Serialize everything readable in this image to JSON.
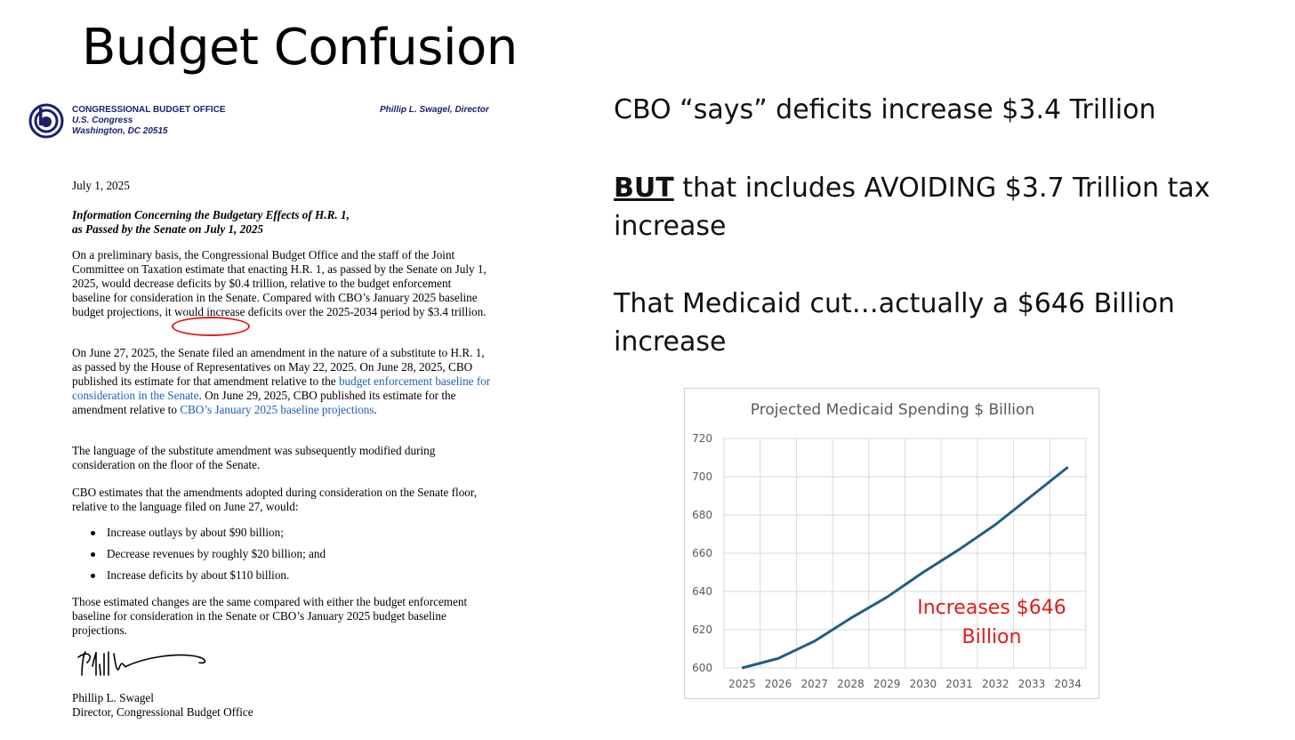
{
  "slide": {
    "title": "Budget Confusion"
  },
  "letter": {
    "org_name": "CONGRESSIONAL BUDGET OFFICE",
    "org_sub1": "U.S. Congress",
    "org_sub2": "Washington, DC 20515",
    "director_header": "Phillip L. Swagel, Director",
    "date": "July 1, 2025",
    "subject_line1": "Information Concerning the Budgetary Effects of H.R. 1,",
    "subject_line2": "as Passed by the Senate on July 1, 2025",
    "para1": "On a preliminary basis, the Congressional Budget Office and the staff of the Joint Committee on Taxation estimate that enacting H.R. 1, as passed by the Senate on July 1, 2025, would decrease deficits by $0.4 trillion, relative to the budget enforcement baseline for consideration in the Senate. Compared with CBO’s January 2025 baseline budget projections, it would increase deficits over the 2025-2034 period by $3.4 trillion.",
    "para2_start": "On June 27, 2025, the Senate filed an amendment in the nature of a substitute to H.R. 1, as passed by the House of Representatives on May 22, 2025. On June 28, 2025, CBO published its estimate for that amendment relative to the ",
    "para2_link1": "budget enforcement baseline for consideration in the Senate",
    "para2_mid": ". On June 29, 2025, CBO published its estimate for the amendment relative to ",
    "para2_link2": "CBO’s January 2025 baseline projections",
    "para2_end": ".",
    "para3": "The language of the substitute amendment was subsequently modified during consideration on the floor of the Senate.",
    "para4": "CBO estimates that the amendments adopted during consideration on the Senate floor, relative to the language filed on June 27, would:",
    "bullets": [
      "Increase outlays by about $90 billion;",
      "Decrease revenues by roughly $20 billion; and",
      "Increase deficits by about $110 billion."
    ],
    "para5": "Those estimated changes are the same compared with either the budget enforcement baseline for consideration in the Senate or CBO’s January 2025 budget baseline projections.",
    "signer_name": "Phillip L. Swagel",
    "signer_title": "Director, Congressional Budget Office",
    "signature_text": "Phillip L. Swagel"
  },
  "claims": {
    "claim1": "CBO “says” deficits increase $3.4 Trillion",
    "claim2_bold": "BUT",
    "claim2_rest": " that includes AVOIDING $3.7 Trillion tax increase",
    "claim3": "That Medicaid cut…actually a $646 Billion increase"
  },
  "colors": {
    "line": "#1f5f82",
    "annotation": "#e01b1b",
    "grid": "#d9d9d9",
    "circle": "#e01b1b",
    "link": "#1f5fb4"
  },
  "chart_data": {
    "type": "line",
    "title": "Projected Medicaid Spending $ Billion",
    "xlabel": "",
    "ylabel": "",
    "x": [
      "2025",
      "2026",
      "2027",
      "2028",
      "2029",
      "2030",
      "2031",
      "2032",
      "2033",
      "2034"
    ],
    "series": [
      {
        "values": [
          600,
          605,
          614,
          626,
          637,
          650,
          662,
          675,
          690,
          705
        ]
      }
    ],
    "ylim": [
      600,
      720
    ],
    "yticks": [
      600,
      620,
      640,
      660,
      680,
      700,
      720
    ],
    "grid": true,
    "annotation": "Increases $646 Billion",
    "annotation_line1": "Increases $646",
    "annotation_line2": "Billion"
  }
}
